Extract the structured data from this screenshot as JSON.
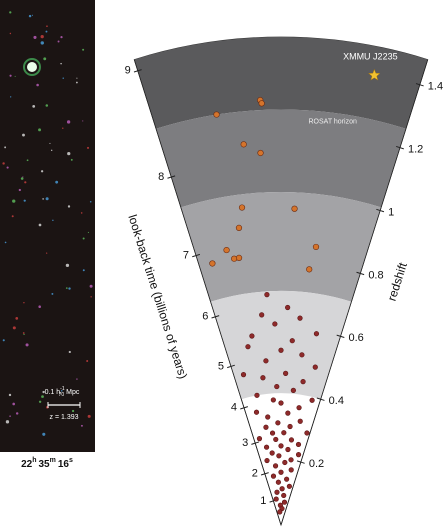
{
  "chart_data": {
    "type": "cone",
    "left_axis_label": "look-back time (billions of years)",
    "right_axis_label": "redshift",
    "zlim": [
      0,
      1.48
    ],
    "zticks": [
      0.2,
      0.4,
      0.6,
      0.8,
      1.0,
      1.2,
      1.4
    ],
    "lookback_ticks": [
      1,
      2,
      3,
      4,
      5,
      6,
      7,
      8,
      9
    ],
    "bands": [
      {
        "zmin": 1.26,
        "zmax": 1.48,
        "color": "#5a5a5c"
      },
      {
        "zmin": 1.01,
        "zmax": 1.26,
        "color": "#7d7d80",
        "label": "ROSAT horizon"
      },
      {
        "zmin": 0.71,
        "zmax": 1.01,
        "color": "#a3a3a6"
      },
      {
        "zmin": 0.4,
        "zmax": 0.71,
        "color": "#d6d6d8"
      }
    ],
    "cluster": {
      "name": "XMMU J2235",
      "redshift": 1.393,
      "offset": 0.67,
      "color": "#f2c230"
    },
    "series": [
      {
        "color": "#d4742c",
        "redshift": [
          1.29,
          1.28,
          1.26,
          1.16,
          1.13,
          0.97,
          0.91,
          0.96,
          0.85,
          0.82,
          0.82,
          0.82,
          0.85,
          0.78
        ],
        "offset": [
          -0.16,
          -0.15,
          -0.51,
          -0.32,
          -0.18,
          -0.4,
          -0.46,
          0.14,
          -0.64,
          -0.57,
          -0.51,
          -0.84,
          0.41,
          0.36
        ]
      },
      {
        "color": "#8e2a2a",
        "redshift": [
          0.7,
          0.66,
          0.64,
          0.63,
          0.61,
          0.59,
          0.58,
          0.56,
          0.55,
          0.53,
          0.52,
          0.5,
          0.49,
          0.47,
          0.46,
          0.45,
          0.44,
          0.42,
          0.41,
          0.4,
          0.39,
          0.38,
          0.37,
          0.36,
          0.35,
          0.34,
          0.33,
          0.32,
          0.31,
          0.3,
          0.3,
          0.29,
          0.28,
          0.28,
          0.27,
          0.26,
          0.26,
          0.25,
          0.24,
          0.24,
          0.23,
          0.22,
          0.22,
          0.21,
          0.2,
          0.2,
          0.19,
          0.18,
          0.17,
          0.16,
          0.15,
          0.14,
          0.13,
          0.12,
          0.11,
          0.1,
          0.09,
          0.08,
          0.07,
          0.06,
          0.05,
          0.04
        ],
        "offset": [
          -0.2,
          0.1,
          -0.3,
          0.3,
          -0.1,
          0.6,
          -0.5,
          0.2,
          -0.6,
          0.0,
          0.4,
          -0.3,
          0.7,
          -0.8,
          0.1,
          -0.4,
          0.5,
          -0.1,
          0.3,
          -0.6,
          0.8,
          -0.2,
          0.0,
          0.5,
          -0.7,
          0.2,
          -0.4,
          0.6,
          -0.1,
          0.3,
          -0.5,
          0.9,
          -0.3,
          0.1,
          -0.8,
          0.4,
          -0.2,
          0.7,
          0.0,
          -0.6,
          0.3,
          -0.4,
          0.8,
          -0.1,
          0.5,
          -0.7,
          0.2,
          -0.3,
          0.6,
          0.0,
          -0.5,
          0.4,
          -0.2,
          0.7,
          0.1,
          -0.4,
          0.3,
          -0.6,
          0.5,
          -0.1,
          0.2,
          -0.3
        ]
      }
    ],
    "image_panel": {
      "scale_bar": {
        "prefix": "0.1 h",
        "sub": "70",
        "sup": "-1",
        "unit": "Mpc"
      },
      "redshift_label": "z = 1.393",
      "coordinate": [
        "22",
        "h",
        "35",
        "m",
        "16",
        "s"
      ]
    }
  }
}
